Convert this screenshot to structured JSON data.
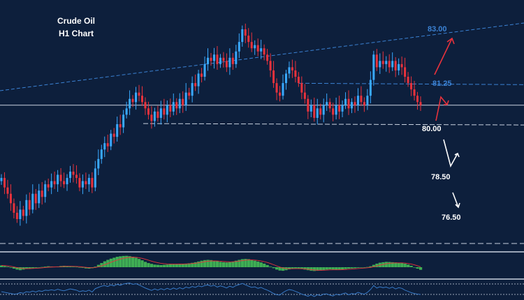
{
  "chart_data": {
    "type": "candlestick",
    "title": "Crude Oil",
    "subtitle": "H1 Chart",
    "colors": {
      "background": "#0d1f3c",
      "bull": "#39a9ff",
      "bear": "#e8323c",
      "trendline": "#3b82d4",
      "level_line": "#c9d2e0",
      "arrow_red": "#e8323c",
      "arrow_white": "#ffffff",
      "macd_hist": "#3fae54",
      "macd_signal": "#e8323c",
      "rsi": "#3b82d4"
    },
    "price_range": [
      74.0,
      84.5
    ],
    "levels": [
      {
        "label": "83.00",
        "value": 83.0,
        "color": "#3b82d4"
      },
      {
        "label": "81.25",
        "value": 81.25,
        "color": "#3b82d4"
      },
      {
        "label": "80.00",
        "value": 80.0,
        "color": "#ffffff"
      },
      {
        "label": "78.50",
        "value": 78.5,
        "color": "#ffffff"
      },
      {
        "label": "76.50",
        "value": 76.5,
        "color": "#ffffff"
      }
    ],
    "current_price_line": 80.6,
    "support_line": 80.02,
    "closes": [
      78.3,
      78.0,
      77.8,
      77.5,
      77.2,
      77.0,
      77.3,
      77.1,
      77.6,
      77.3,
      77.8,
      77.5,
      77.9,
      77.7,
      78.1,
      78.0,
      78.2,
      78.1,
      78.4,
      78.2,
      78.1,
      78.3,
      78.5,
      78.4,
      78.3,
      78.0,
      78.2,
      78.1,
      78.3,
      78.0,
      78.6,
      78.9,
      79.2,
      79.4,
      79.3,
      79.7,
      79.6,
      80.0,
      79.9,
      80.3,
      80.5,
      80.8,
      80.7,
      81.0,
      80.9,
      80.7,
      80.5,
      80.3,
      80.1,
      80.4,
      80.2,
      80.5,
      80.3,
      80.6,
      80.4,
      80.7,
      80.5,
      80.8,
      80.6,
      81.0,
      80.9,
      81.3,
      81.2,
      81.6,
      81.5,
      81.9,
      82.1,
      82.0,
      82.2,
      81.9,
      82.1,
      82.0,
      81.8,
      82.1,
      81.9,
      82.3,
      82.6,
      83.0,
      82.8,
      82.6,
      82.4,
      82.5,
      82.3,
      82.4,
      82.2,
      82.0,
      81.7,
      81.3,
      81.0,
      80.9,
      81.3,
      81.6,
      81.8,
      81.7,
      81.5,
      81.3,
      81.0,
      80.8,
      80.4,
      80.6,
      80.2,
      80.5,
      80.3,
      80.6,
      80.7,
      80.5,
      80.3,
      80.6,
      80.4,
      80.6,
      80.8,
      80.5,
      80.7,
      80.6,
      80.9,
      80.7,
      80.6,
      80.9,
      81.4,
      82.2,
      81.8,
      82.0,
      81.9,
      82.0,
      81.8,
      82.0,
      81.7,
      81.9,
      81.8,
      81.5,
      81.3,
      81.1,
      80.9,
      80.7,
      80.6
    ],
    "macd_hist": [
      0.15,
      0.1,
      0.05,
      -0.05,
      -0.12,
      -0.2,
      -0.25,
      -0.2,
      -0.15,
      -0.1,
      -0.08,
      -0.05,
      -0.02,
      0.02,
      0.05,
      0.08,
      0.06,
      0.04,
      0.06,
      0.1,
      0.12,
      0.1,
      0.08,
      0.05,
      0.03,
      0.0,
      -0.05,
      -0.1,
      -0.12,
      -0.08,
      0.05,
      0.2,
      0.35,
      0.5,
      0.62,
      0.72,
      0.8,
      0.88,
      0.92,
      0.95,
      0.96,
      0.93,
      0.88,
      0.8,
      0.7,
      0.58,
      0.45,
      0.35,
      0.28,
      0.22,
      0.2,
      0.18,
      0.2,
      0.22,
      0.24,
      0.25,
      0.26,
      0.27,
      0.28,
      0.3,
      0.33,
      0.37,
      0.42,
      0.48,
      0.55,
      0.6,
      0.62,
      0.6,
      0.55,
      0.5,
      0.45,
      0.42,
      0.4,
      0.42,
      0.48,
      0.55,
      0.62,
      0.68,
      0.7,
      0.68,
      0.62,
      0.55,
      0.48,
      0.4,
      0.3,
      0.18,
      0.05,
      -0.08,
      -0.2,
      -0.28,
      -0.3,
      -0.25,
      -0.18,
      -0.12,
      -0.1,
      -0.12,
      -0.15,
      -0.2,
      -0.25,
      -0.3,
      -0.32,
      -0.3,
      -0.28,
      -0.25,
      -0.2,
      -0.18,
      -0.2,
      -0.22,
      -0.2,
      -0.18,
      -0.15,
      -0.12,
      -0.1,
      -0.08,
      -0.05,
      -0.02,
      0.0,
      0.02,
      0.08,
      0.2,
      0.3,
      0.38,
      0.42,
      0.45,
      0.44,
      0.42,
      0.4,
      0.38,
      0.35,
      0.3,
      0.22,
      0.12,
      0.0,
      -0.12,
      -0.22
    ],
    "rsi": [
      48,
      46,
      44,
      42,
      40,
      41,
      45,
      43,
      48,
      46,
      50,
      47,
      51,
      49,
      53,
      52,
      54,
      52,
      56,
      53,
      51,
      54,
      57,
      55,
      53,
      48,
      51,
      49,
      53,
      47,
      58,
      62,
      66,
      68,
      65,
      70,
      67,
      72,
      69,
      73,
      75,
      76,
      72,
      74,
      70,
      65,
      60,
      56,
      52,
      57,
      53,
      58,
      54,
      59,
      55,
      60,
      56,
      61,
      57,
      63,
      60,
      65,
      62,
      67,
      64,
      68,
      70,
      66,
      69,
      63,
      67,
      64,
      60,
      66,
      62,
      68,
      71,
      75,
      70,
      66,
      62,
      64,
      59,
      62,
      57,
      53,
      48,
      42,
      38,
      37,
      45,
      51,
      55,
      53,
      49,
      45,
      40,
      37,
      33,
      38,
      32,
      38,
      35,
      40,
      41,
      37,
      34,
      40,
      37,
      41,
      44,
      38,
      42,
      40,
      46,
      42,
      40,
      46,
      55,
      68,
      60,
      64,
      61,
      63,
      59,
      63,
      57,
      61,
      59,
      53,
      49,
      45,
      42,
      40,
      39
    ]
  }
}
